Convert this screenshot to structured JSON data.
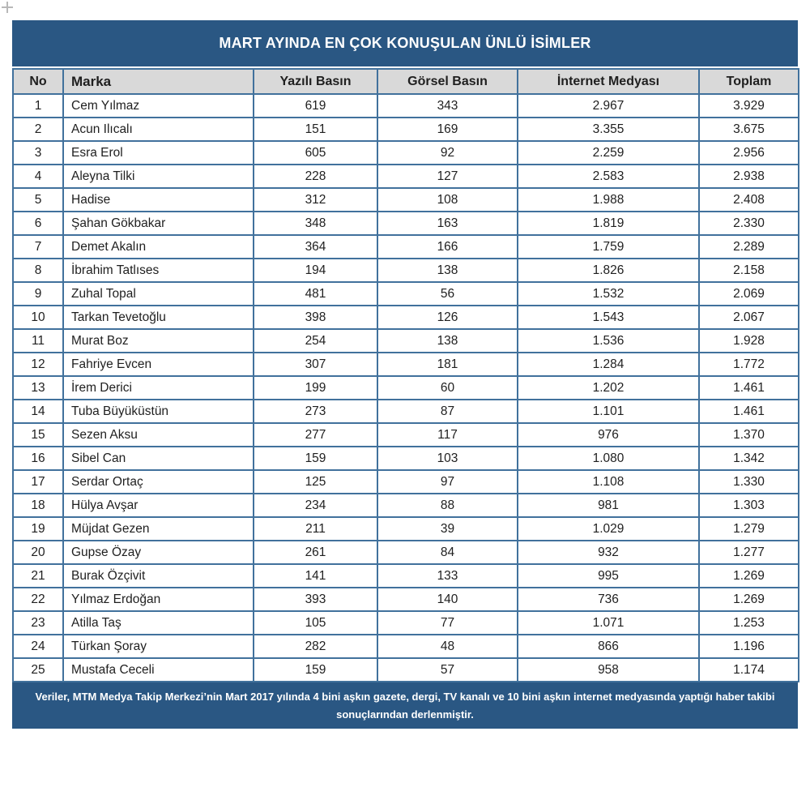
{
  "title": "MART AYINDA EN ÇOK KONUŞULAN ÜNLÜ İSİMLER",
  "table": {
    "columns": [
      "No",
      "Marka",
      "Yazılı Basın",
      "Görsel Basın",
      "İnternet Medyası",
      "Toplam"
    ],
    "rows": [
      [
        "1",
        "Cem Yılmaz",
        "619",
        "343",
        "2.967",
        "3.929"
      ],
      [
        "2",
        "Acun Ilıcalı",
        "151",
        "169",
        "3.355",
        "3.675"
      ],
      [
        "3",
        "Esra Erol",
        "605",
        "92",
        "2.259",
        "2.956"
      ],
      [
        "4",
        "Aleyna Tilki",
        "228",
        "127",
        "2.583",
        "2.938"
      ],
      [
        "5",
        "Hadise",
        "312",
        "108",
        "1.988",
        "2.408"
      ],
      [
        "6",
        "Şahan Gökbakar",
        "348",
        "163",
        "1.819",
        "2.330"
      ],
      [
        "7",
        "Demet Akalın",
        "364",
        "166",
        "1.759",
        "2.289"
      ],
      [
        "8",
        "İbrahim Tatlıses",
        "194",
        "138",
        "1.826",
        "2.158"
      ],
      [
        "9",
        "Zuhal Topal",
        "481",
        "56",
        "1.532",
        "2.069"
      ],
      [
        "10",
        "Tarkan Tevetoğlu",
        "398",
        "126",
        "1.543",
        "2.067"
      ],
      [
        "11",
        "Murat Boz",
        "254",
        "138",
        "1.536",
        "1.928"
      ],
      [
        "12",
        "Fahriye Evcen",
        "307",
        "181",
        "1.284",
        "1.772"
      ],
      [
        "13",
        "İrem Derici",
        "199",
        "60",
        "1.202",
        "1.461"
      ],
      [
        "14",
        "Tuba Büyüküstün",
        "273",
        "87",
        "1.101",
        "1.461"
      ],
      [
        "15",
        "Sezen Aksu",
        "277",
        "117",
        "976",
        "1.370"
      ],
      [
        "16",
        "Sibel Can",
        "159",
        "103",
        "1.080",
        "1.342"
      ],
      [
        "17",
        "Serdar Ortaç",
        "125",
        "97",
        "1.108",
        "1.330"
      ],
      [
        "18",
        "Hülya Avşar",
        "234",
        "88",
        "981",
        "1.303"
      ],
      [
        "19",
        "Müjdat Gezen",
        "211",
        "39",
        "1.029",
        "1.279"
      ],
      [
        "20",
        "Gupse Özay",
        "261",
        "84",
        "932",
        "1.277"
      ],
      [
        "21",
        "Burak Özçivit",
        "141",
        "133",
        "995",
        "1.269"
      ],
      [
        "22",
        "Yılmaz Erdoğan",
        "393",
        "140",
        "736",
        "1.269"
      ],
      [
        "23",
        "Atilla Taş",
        "105",
        "77",
        "1.071",
        "1.253"
      ],
      [
        "24",
        "Türkan Şoray",
        "282",
        "48",
        "866",
        "1.196"
      ],
      [
        "25",
        "Mustafa Ceceli",
        "159",
        "57",
        "958",
        "1.174"
      ]
    ]
  },
  "footer": {
    "text": "Veriler, MTM Medya Takip Merkezi’nin Mart 2017 yılında 4 bini aşkın gazete, dergi, TV kanalı ve 10 bini aşkın internet medyasında yaptığı haber takibi sonuçlarından derlenmiştir."
  },
  "colors": {
    "navy": "#2A5783",
    "border": "#41719C",
    "header_bg": "#D9D9D9",
    "text": "#1F1F1F"
  }
}
